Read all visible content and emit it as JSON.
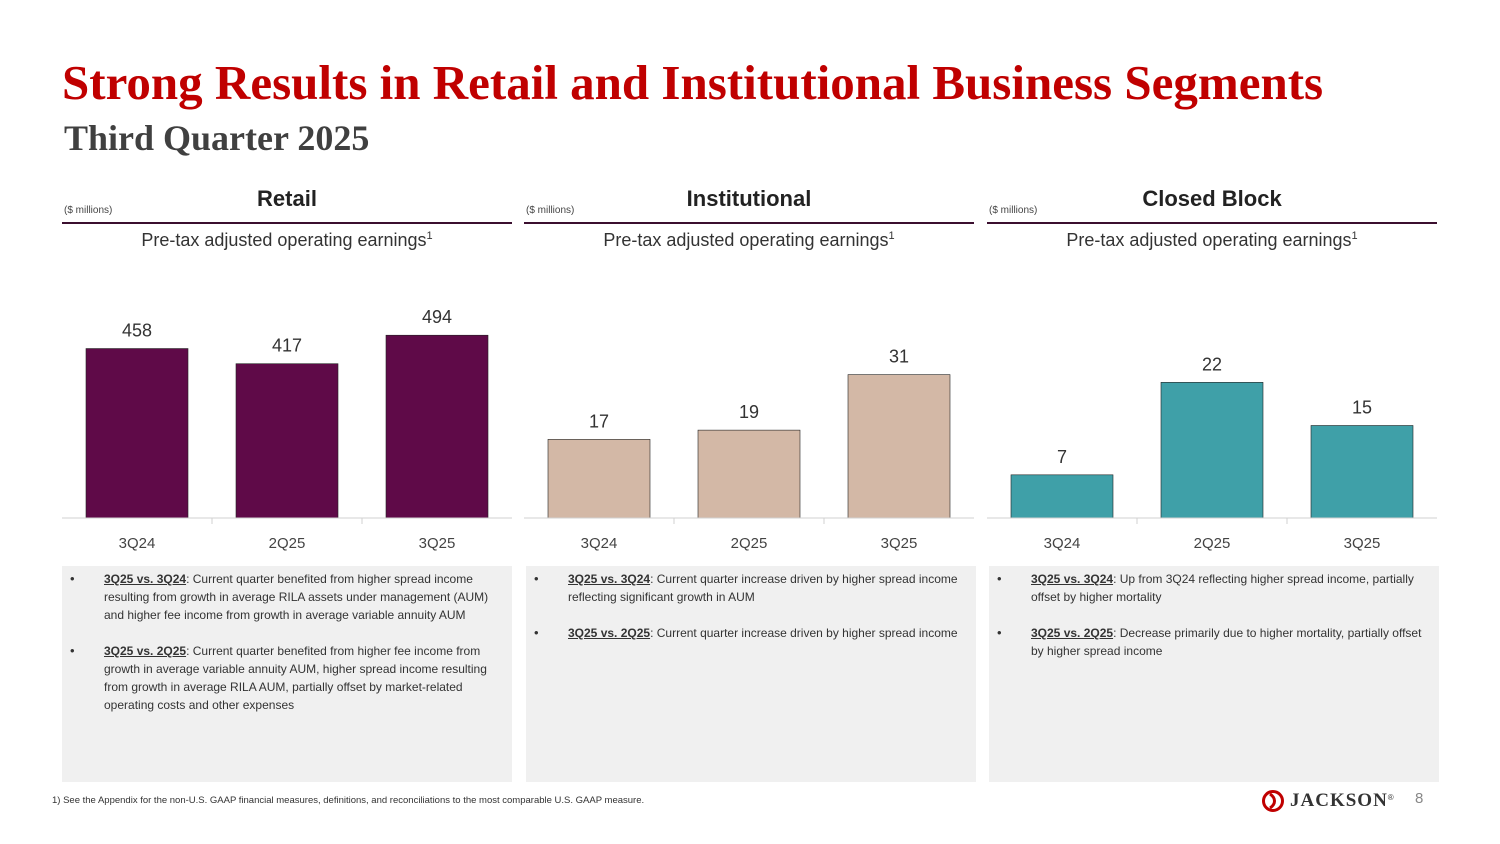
{
  "page": {
    "title": "Strong Results in Retail and Institutional Business Segments",
    "subtitle": "Third Quarter 2025",
    "footnote": "1) See the Appendix for the non-U.S. GAAP financial measures, definitions, and reconciliations to the most comparable U.S. GAAP measure.",
    "logo_text": "JACKSON",
    "logo_mark": "®",
    "page_number": "8"
  },
  "panels": [
    {
      "segment": "Retail",
      "units": "($ millions)",
      "metric": "Pre-tax adjusted operating earnings",
      "metric_sup": "1",
      "bar_color": "#5f0a48",
      "notes": [
        {
          "lead": "3Q25 vs. 3Q24",
          "text": ": Current quarter benefited from higher spread income resulting from growth in average RILA assets under management (AUM) and higher fee income from growth in average variable annuity AUM"
        },
        {
          "lead": "3Q25 vs. 2Q25",
          "text": ": Current quarter benefited from higher fee income from growth in average variable annuity AUM, higher spread income resulting from growth in average RILA AUM, partially offset by market-related operating costs and other expenses"
        }
      ]
    },
    {
      "segment": "Institutional",
      "units": "($ millions)",
      "metric": "Pre-tax adjusted operating earnings",
      "metric_sup": "1",
      "bar_color": "#d3b8a6",
      "notes": [
        {
          "lead": "3Q25 vs. 3Q24",
          "text": ": Current quarter increase driven by higher spread income reflecting significant growth in AUM"
        },
        {
          "lead": "3Q25 vs. 2Q25",
          "text": ": Current quarter increase driven by higher spread income"
        }
      ]
    },
    {
      "segment": "Closed Block",
      "units": "($ millions)",
      "metric": "Pre-tax adjusted operating earnings",
      "metric_sup": "1",
      "bar_color": "#3fa0a8",
      "notes": [
        {
          "lead": "3Q25 vs. 3Q24",
          "text": ": Up from 3Q24 reflecting higher spread income, partially offset by higher mortality"
        },
        {
          "lead": "3Q25 vs. 2Q25",
          "text": ": Decrease primarily due to higher mortality, partially offset by higher spread income"
        }
      ]
    }
  ],
  "chart_data": [
    {
      "type": "bar",
      "title": "Retail",
      "ylabel": "Pre-tax adjusted operating earnings ($ millions)",
      "categories": [
        "3Q24",
        "2Q25",
        "3Q25"
      ],
      "values": [
        458,
        417,
        494
      ],
      "ylim": [
        0,
        500
      ]
    },
    {
      "type": "bar",
      "title": "Institutional",
      "ylabel": "Pre-tax adjusted operating earnings ($ millions)",
      "categories": [
        "3Q24",
        "2Q25",
        "3Q25"
      ],
      "values": [
        17,
        19,
        31
      ],
      "ylim": [
        0,
        40
      ]
    },
    {
      "type": "bar",
      "title": "Closed Block",
      "ylabel": "Pre-tax adjusted operating earnings ($ millions)",
      "categories": [
        "3Q24",
        "2Q25",
        "3Q25"
      ],
      "values": [
        7,
        22,
        15
      ],
      "ylim": [
        0,
        30
      ]
    }
  ]
}
